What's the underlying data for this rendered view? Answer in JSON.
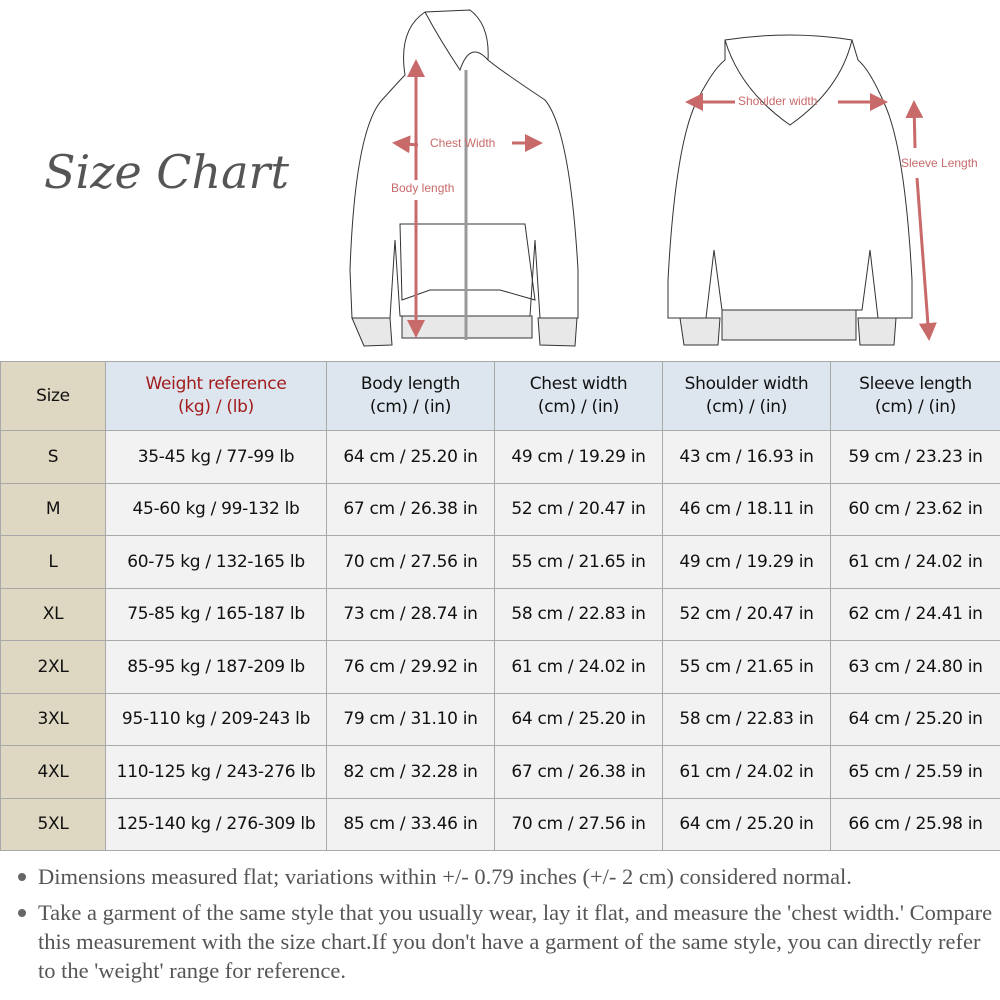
{
  "title": "Size Chart",
  "diagram": {
    "chest": "Chest Width",
    "body": "Body length",
    "shoulder": "Shoulder width",
    "sleeve": "Sleeve Length",
    "arrow_color": "#c86a6a"
  },
  "table": {
    "headers": [
      [
        "Size",
        ""
      ],
      [
        "Weight reference",
        "(kg) / (lb)"
      ],
      [
        "Body length",
        "(cm) / (in)"
      ],
      [
        "Chest width",
        "(cm) / (in)"
      ],
      [
        "Shoulder width",
        "(cm) / (in)"
      ],
      [
        "Sleeve length",
        "(cm) / (in)"
      ]
    ],
    "rows": [
      [
        "S",
        "35-45 kg / 77-99 lb",
        "64 cm / 25.20 in",
        "49 cm / 19.29 in",
        "43 cm / 16.93 in",
        "59 cm / 23.23 in"
      ],
      [
        "M",
        "45-60 kg / 99-132 lb",
        "67 cm / 26.38 in",
        "52 cm / 20.47 in",
        "46 cm / 18.11 in",
        "60 cm / 23.62 in"
      ],
      [
        "L",
        "60-75 kg / 132-165 lb",
        "70 cm / 27.56 in",
        "55 cm / 21.65 in",
        "49 cm / 19.29 in",
        "61 cm / 24.02 in"
      ],
      [
        "XL",
        "75-85 kg / 165-187 lb",
        "73 cm / 28.74 in",
        "58 cm / 22.83 in",
        "52 cm / 20.47 in",
        "62 cm / 24.41 in"
      ],
      [
        "2XL",
        "85-95 kg / 187-209 lb",
        "76 cm / 29.92 in",
        "61 cm / 24.02 in",
        "55 cm / 21.65 in",
        "63 cm / 24.80 in"
      ],
      [
        "3XL",
        "95-110 kg / 209-243 lb",
        "79 cm / 31.10 in",
        "64 cm / 25.20 in",
        "58 cm / 22.83 in",
        "64 cm / 25.20 in"
      ],
      [
        "4XL",
        "110-125 kg / 243-276 lb",
        "82 cm / 32.28 in",
        "67 cm / 26.38 in",
        "61 cm / 24.02 in",
        "65 cm / 25.59 in"
      ],
      [
        "5XL",
        "125-140 kg / 276-309 lb",
        "85 cm / 33.46 in",
        "70 cm / 27.56 in",
        "64 cm / 25.20 in",
        "66 cm / 25.98 in"
      ]
    ]
  },
  "notes": [
    "Dimensions measured flat; variations within +/- 0.79 inches (+/- 2 cm) considered normal.",
    "Take a garment of the same style that you usually wear, lay it flat, and measure the 'chest width.' Compare this measurement with the size chart.If you don't have a garment of the same style, you can directly refer to the 'weight' range for reference."
  ]
}
